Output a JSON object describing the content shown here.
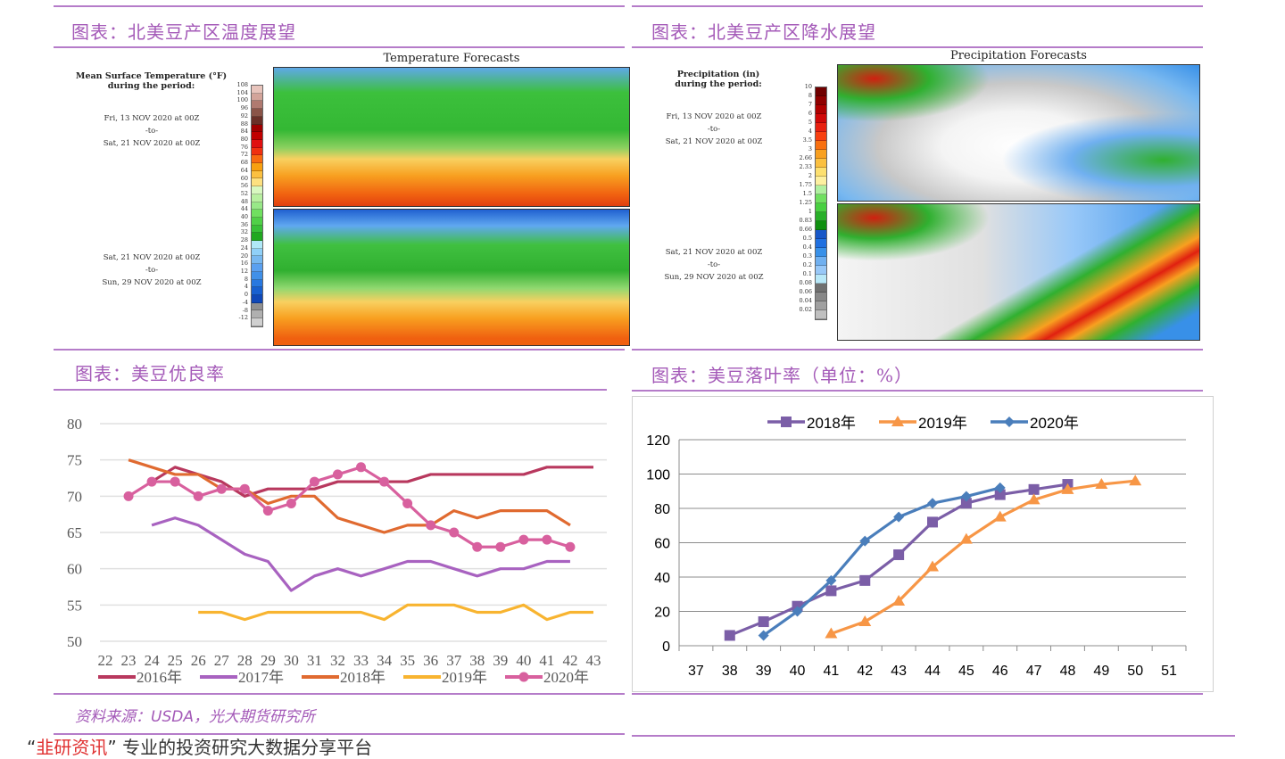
{
  "left_top": {
    "title": "图表：北美豆产区温度展望",
    "map_title": "Temperature Forecasts",
    "legend_head": "Mean Surface Temperature (°F)\nduring the period:",
    "period1": [
      "Fri, 13 NOV 2020 at 00Z",
      "-to-",
      "Sat, 21 NOV 2020 at 00Z"
    ],
    "period2": [
      "Sat, 21 NOV 2020 at 00Z",
      "-to-",
      "Sun, 29 NOV 2020 at 00Z"
    ],
    "colorbar": [
      [
        "108",
        "#e8c4bc"
      ],
      [
        "104",
        "#d3a49a"
      ],
      [
        "100",
        "#b07a70"
      ],
      [
        "96",
        "#8a5448"
      ],
      [
        "92",
        "#6a3028"
      ],
      [
        "88",
        "#a00000"
      ],
      [
        "84",
        "#c00000"
      ],
      [
        "80",
        "#e01010"
      ],
      [
        "76",
        "#f03010"
      ],
      [
        "72",
        "#f86a10"
      ],
      [
        "68",
        "#f8a010"
      ],
      [
        "64",
        "#fbc040"
      ],
      [
        "60",
        "#fde080"
      ],
      [
        "56",
        "#d8f8c0"
      ],
      [
        "52",
        "#b8f0a0"
      ],
      [
        "48",
        "#98e888"
      ],
      [
        "44",
        "#70e060"
      ],
      [
        "40",
        "#50d048"
      ],
      [
        "36",
        "#38c038"
      ],
      [
        "32",
        "#20a820"
      ],
      [
        "28",
        "#b0e8f8"
      ],
      [
        "24",
        "#90d0f8"
      ],
      [
        "20",
        "#78b8f0"
      ],
      [
        "16",
        "#5aa0f0"
      ],
      [
        "12",
        "#4090e8"
      ],
      [
        "8",
        "#2878e0"
      ],
      [
        "4",
        "#1860d0"
      ],
      [
        "0",
        "#1048b8"
      ],
      [
        "-4",
        "#909090"
      ],
      [
        "-8",
        "#b0b0b0"
      ],
      [
        "-12",
        "#d0d0d0"
      ]
    ]
  },
  "right_top": {
    "title": "图表：北美豆产区降水展望",
    "map_title": "Precipitation Forecasts",
    "legend_head": "Precipitation (in)\nduring the period:",
    "period1": [
      "Fri, 13 NOV 2020 at 00Z",
      "-to-",
      "Sat, 21 NOV 2020 at 00Z"
    ],
    "period2": [
      "Sat, 21 NOV 2020 at 00Z",
      "-to-",
      "Sun, 29 NOV 2020 at 00Z"
    ],
    "colorbar": [
      [
        "10",
        "#700000"
      ],
      [
        "8",
        "#900000"
      ],
      [
        "7",
        "#b00000"
      ],
      [
        "6",
        "#d00808"
      ],
      [
        "5",
        "#e82010"
      ],
      [
        "4",
        "#f84010"
      ],
      [
        "3.5",
        "#f87010"
      ],
      [
        "3",
        "#f8a020"
      ],
      [
        "2.66",
        "#fbc040"
      ],
      [
        "2.33",
        "#fde070"
      ],
      [
        "2",
        "#fdf0a0"
      ],
      [
        "1.75",
        "#b0f0a0"
      ],
      [
        "1.5",
        "#70e060"
      ],
      [
        "1.25",
        "#48d040"
      ],
      [
        "1",
        "#28b028"
      ],
      [
        "0.83",
        "#109010"
      ],
      [
        "0.66",
        "#1858c8"
      ],
      [
        "0.5",
        "#2070e0"
      ],
      [
        "0.4",
        "#3890e8"
      ],
      [
        "0.3",
        "#70b0f0"
      ],
      [
        "0.2",
        "#98c8f8"
      ],
      [
        "0.1",
        "#b8e8f8"
      ],
      [
        "0.08",
        "#707070"
      ],
      [
        "0.06",
        "#888888"
      ],
      [
        "0.04",
        "#a0a0a0"
      ],
      [
        "0.02",
        "#c0c0c0"
      ]
    ]
  },
  "left_bottom": {
    "title": "图表：美豆优良率"
  },
  "right_bottom": {
    "title": "图表：美豆落叶率（单位：%）"
  },
  "source": "资料来源：USDA，光大期货研究所",
  "footer": {
    "quote_open": "“",
    "brand": "韭研资讯",
    "quote_close": "”",
    "text": "专业的投资研究大数据分享平台"
  },
  "chart_data": [
    {
      "type": "line",
      "title": "美豆优良率",
      "x": [
        22,
        23,
        24,
        25,
        26,
        27,
        28,
        29,
        30,
        31,
        32,
        33,
        34,
        35,
        36,
        37,
        38,
        39,
        40,
        41,
        42,
        43
      ],
      "ylim": [
        50,
        80
      ],
      "yticks": [
        50,
        55,
        60,
        65,
        70,
        75,
        80
      ],
      "grid": true,
      "legend": "bottom",
      "series": [
        {
          "name": "2016年",
          "color": "#b8385e",
          "marker": false,
          "values": [
            null,
            null,
            72,
            74,
            73,
            72,
            70,
            71,
            71,
            71,
            72,
            72,
            72,
            72,
            73,
            73,
            73,
            73,
            73,
            74,
            74,
            74
          ]
        },
        {
          "name": "2017年",
          "color": "#a862c0",
          "marker": false,
          "values": [
            null,
            null,
            66,
            67,
            66,
            64,
            62,
            61,
            57,
            59,
            60,
            59,
            60,
            61,
            61,
            60,
            59,
            60,
            60,
            61,
            61,
            null
          ]
        },
        {
          "name": "2018年",
          "color": "#e06a30",
          "marker": false,
          "values": [
            null,
            75,
            74,
            73,
            73,
            71,
            71,
            69,
            70,
            70,
            67,
            66,
            65,
            66,
            66,
            68,
            67,
            68,
            68,
            68,
            66,
            null
          ]
        },
        {
          "name": "2019年",
          "color": "#f8b430",
          "marker": false,
          "values": [
            null,
            null,
            null,
            null,
            54,
            54,
            53,
            54,
            54,
            54,
            54,
            54,
            53,
            55,
            55,
            55,
            54,
            54,
            55,
            53,
            54,
            54
          ]
        },
        {
          "name": "2020年",
          "color": "#d8609e",
          "marker": true,
          "values": [
            null,
            70,
            72,
            72,
            70,
            71,
            71,
            68,
            69,
            72,
            73,
            74,
            72,
            69,
            66,
            65,
            63,
            63,
            64,
            64,
            63,
            null
          ]
        }
      ]
    },
    {
      "type": "line",
      "title": "美豆落叶率（单位：%）",
      "x": [
        37,
        38,
        39,
        40,
        41,
        42,
        43,
        44,
        45,
        46,
        47,
        48,
        49,
        50,
        51
      ],
      "ylim": [
        0,
        120
      ],
      "yticks": [
        0,
        20,
        40,
        60,
        80,
        100,
        120
      ],
      "grid": true,
      "legend": "top",
      "series": [
        {
          "name": "2018年",
          "color": "#7b5ea7",
          "marker": "square",
          "values": [
            null,
            6,
            14,
            23,
            32,
            38,
            53,
            72,
            83,
            88,
            91,
            94,
            null,
            null,
            null
          ]
        },
        {
          "name": "2019年",
          "color": "#f79646",
          "marker": "triangle",
          "values": [
            null,
            null,
            null,
            null,
            7,
            14,
            26,
            46,
            62,
            75,
            85,
            91,
            94,
            96,
            null
          ]
        },
        {
          "name": "2020年",
          "color": "#4a7ebb",
          "marker": "diamond",
          "values": [
            null,
            null,
            6,
            20,
            38,
            61,
            75,
            83,
            87,
            92,
            null,
            null,
            null,
            null,
            null
          ]
        }
      ]
    }
  ]
}
